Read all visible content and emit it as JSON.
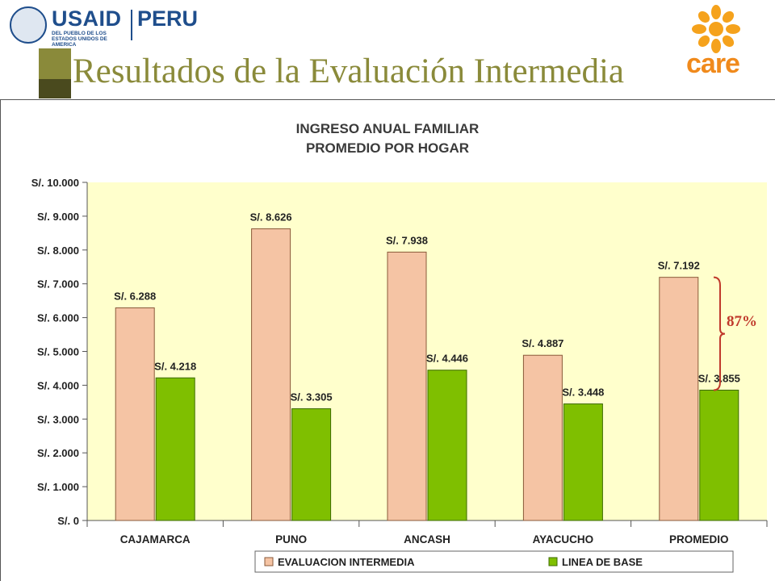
{
  "slide": {
    "title": "Resultados de la Evaluación Intermedia"
  },
  "logos": {
    "usaid": {
      "name": "USAID",
      "country": "PERU",
      "tagline": "DEL PUEBLO DE LOS ESTADOS UNIDOS DE AMERICA"
    },
    "care": {
      "name": "care"
    }
  },
  "colors": {
    "evaluacion": "#f5c4a4",
    "linea_base": "#7fbf00",
    "plot_bg": "#ffffcc",
    "bracket": "#c0392b"
  },
  "chart_data": {
    "type": "bar",
    "title": "INGRESO ANUAL FAMILIAR",
    "subtitle": "PROMEDIO POR HOGAR",
    "categories": [
      "CAJAMARCA",
      "PUNO",
      "ANCASH",
      "AYACUCHO",
      "PROMEDIO"
    ],
    "series": [
      {
        "name": "EVALUACION INTERMEDIA",
        "values": [
          6288,
          8626,
          7938,
          4887,
          7192
        ],
        "labels": [
          "S/. 6.288",
          "S/. 8.626",
          "S/. 7.938",
          "S/. 4.887",
          "S/. 7.192"
        ]
      },
      {
        "name": "LINEA DE BASE",
        "values": [
          4218,
          3305,
          4446,
          3448,
          3855
        ],
        "labels": [
          "S/. 4.218",
          "S/. 3.305",
          "S/. 4.446",
          "S/. 3.448",
          "S/. 3.855"
        ]
      }
    ],
    "ylim": [
      0,
      10000
    ],
    "yticks": [
      0,
      1000,
      2000,
      3000,
      4000,
      5000,
      6000,
      7000,
      8000,
      9000,
      10000
    ],
    "ytick_labels": [
      "S/. 0",
      "S/. 1.000",
      "S/. 2.000",
      "S/. 3.000",
      "S/. 4.000",
      "S/. 5.000",
      "S/. 6.000",
      "S/. 7.000",
      "S/. 8.000",
      "S/. 9.000",
      "S/. 10.000"
    ],
    "grid": false,
    "legend_position": "bottom",
    "annotation": "87%"
  }
}
